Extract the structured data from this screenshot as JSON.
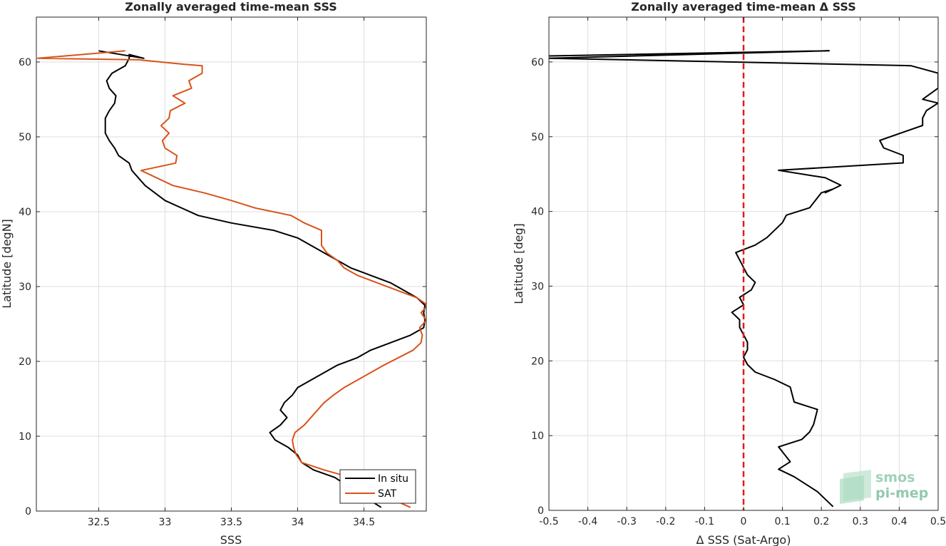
{
  "chart_data": [
    {
      "type": "line",
      "title": "Zonally averaged time-mean SSS",
      "xlabel": "SSS",
      "ylabel": "Latitude [degN]",
      "xlim": [
        32.03,
        34.97
      ],
      "ylim": [
        0,
        66
      ],
      "xticks": [
        32.5,
        33,
        33.5,
        34,
        34.5
      ],
      "xtick_labels": [
        "32.5",
        "33",
        "33.5",
        "34",
        "34.5"
      ],
      "yticks": [
        0,
        10,
        20,
        30,
        40,
        50,
        60
      ],
      "ytick_labels": [
        "0",
        "10",
        "20",
        "30",
        "40",
        "50",
        "60"
      ],
      "grid": true,
      "legend_position": "bottom-right",
      "series": [
        {
          "name": "In situ",
          "color": "#000000",
          "x": [
            34.63,
            34.45,
            34.28,
            34.12,
            34.03,
            34.0,
            33.93,
            33.83,
            33.79,
            33.87,
            33.92,
            33.87,
            33.9,
            33.96,
            34.0,
            34.1,
            34.2,
            34.3,
            34.45,
            34.55,
            34.7,
            34.85,
            34.95,
            34.96,
            34.95,
            34.96,
            34.9,
            34.8,
            34.7,
            34.55,
            34.4,
            34.3,
            34.2,
            34.1,
            34.0,
            33.82,
            33.5,
            33.25,
            33.0,
            32.85,
            32.75,
            32.73,
            32.65,
            32.62,
            32.58,
            32.55,
            32.55,
            32.58,
            32.62,
            32.63,
            32.58,
            32.56,
            32.6,
            32.7,
            32.73,
            32.73,
            32.84,
            32.5
          ],
          "y": [
            0.5,
            2.5,
            4.5,
            5.5,
            6.5,
            7.5,
            8.5,
            9.5,
            10.5,
            11.5,
            12.5,
            13.5,
            14.5,
            15.5,
            16.5,
            17.5,
            18.5,
            19.5,
            20.5,
            21.5,
            22.5,
            23.5,
            24.5,
            25.5,
            26.5,
            27.5,
            28.5,
            29.5,
            30.5,
            31.5,
            32.5,
            33.5,
            34.5,
            35.5,
            36.5,
            37.5,
            38.5,
            39.5,
            41.5,
            43.5,
            45.5,
            46.5,
            47.5,
            48.5,
            49.5,
            50.5,
            52.5,
            53.5,
            54.5,
            55.5,
            56.5,
            57.5,
            58.5,
            59.5,
            60.5,
            61.0,
            60.5,
            61.5
          ]
        },
        {
          "name": "SAT",
          "color": "#D95319",
          "x": [
            34.85,
            34.6,
            34.4,
            34.2,
            34.03,
            33.99,
            33.97,
            33.96,
            33.98,
            34.05,
            34.1,
            34.15,
            34.2,
            34.27,
            34.35,
            34.45,
            34.55,
            34.65,
            34.76,
            34.87,
            34.93,
            34.94,
            34.92,
            34.97,
            34.93,
            34.98,
            34.9,
            34.75,
            34.6,
            34.45,
            34.35,
            34.3,
            34.22,
            34.18,
            34.18,
            34.05,
            33.95,
            33.68,
            33.5,
            33.3,
            33.06,
            32.82,
            33.08,
            33.09,
            33.0,
            32.98,
            33.03,
            32.97,
            33.03,
            33.04,
            33.15,
            33.06,
            33.2,
            33.18,
            33.28,
            33.28,
            33.14,
            32.8,
            32.04,
            32.7
          ],
          "y": [
            0.5,
            2.5,
            4.5,
            5.5,
            6.5,
            7.5,
            8.5,
            9.5,
            10.5,
            11.5,
            12.5,
            13.5,
            14.5,
            15.5,
            16.5,
            17.5,
            18.5,
            19.5,
            20.5,
            21.5,
            22.5,
            23.5,
            24.5,
            25.5,
            26.5,
            27.5,
            28.5,
            29.5,
            30.5,
            31.5,
            32.5,
            33.5,
            34.5,
            35.5,
            37.5,
            38.5,
            39.5,
            40.5,
            41.5,
            42.5,
            43.5,
            45.5,
            46.5,
            47.5,
            48.5,
            49.5,
            50.5,
            51.5,
            52.5,
            53.5,
            54.5,
            55.5,
            56.5,
            57.5,
            58.5,
            59.5,
            59.7,
            60.3,
            60.5,
            61.5
          ]
        }
      ]
    },
    {
      "type": "line",
      "title": "Zonally averaged time-mean Δ SSS",
      "xlabel": "Δ SSS (Sat-Argo)",
      "ylabel": "Latitude [deg]",
      "xlim": [
        -0.5,
        0.5
      ],
      "ylim": [
        0,
        66
      ],
      "xticks": [
        -0.5,
        -0.4,
        -0.3,
        -0.2,
        -0.1,
        0,
        0.1,
        0.2,
        0.3,
        0.4,
        0.5
      ],
      "xtick_labels": [
        "-0.5",
        "-0.4",
        "-0.3",
        "-0.2",
        "-0.1",
        "0",
        "0.1",
        "0.2",
        "0.3",
        "0.4",
        "0.5"
      ],
      "yticks": [
        0,
        10,
        20,
        30,
        40,
        50,
        60
      ],
      "ytick_labels": [
        "0",
        "10",
        "20",
        "30",
        "40",
        "50",
        "60"
      ],
      "grid": true,
      "reference_line": {
        "x": 0,
        "style": "dashed",
        "color": "#E31A1C"
      },
      "series": [
        {
          "name": "",
          "color": "#000000",
          "x": [
            0.23,
            0.19,
            0.16,
            0.13,
            0.09,
            0.12,
            0.09,
            0.15,
            0.17,
            0.18,
            0.19,
            0.13,
            0.12,
            0.08,
            0.03,
            0.01,
            0.0,
            0.01,
            0.01,
            0.0,
            -0.01,
            -0.01,
            -0.03,
            0.0,
            -0.01,
            0.02,
            0.03,
            0.01,
            0.0,
            -0.02,
            0.03,
            0.06,
            0.08,
            0.1,
            0.11,
            0.17,
            0.2,
            0.23,
            0.21,
            0.25,
            0.21,
            0.09,
            0.41,
            0.41,
            0.36,
            0.35,
            0.46,
            0.46,
            0.47,
            0.5,
            0.46,
            0.5,
            0.5,
            0.43,
            -0.5,
            0.22,
            -0.5
          ],
          "y": [
            0.5,
            2.5,
            3.5,
            4.5,
            5.5,
            6.5,
            8.5,
            9.5,
            10.5,
            11.5,
            13.5,
            14.5,
            16.5,
            17.5,
            18.5,
            19.5,
            20.5,
            21.5,
            22.5,
            23.5,
            24.5,
            25.5,
            26.5,
            27.5,
            28.5,
            29.5,
            30.5,
            31.5,
            32.5,
            34.5,
            35.5,
            36.5,
            37.5,
            38.5,
            39.5,
            40.5,
            42.5,
            43.0,
            42.5,
            43.5,
            44.5,
            45.5,
            46.5,
            47.5,
            48.5,
            49.5,
            51.5,
            52.5,
            53.5,
            54.5,
            55.0,
            56.5,
            58.5,
            59.5,
            60.5,
            61.5,
            60.8
          ]
        }
      ]
    }
  ],
  "logo": {
    "line1": "smos",
    "line2": "pi-mep"
  }
}
